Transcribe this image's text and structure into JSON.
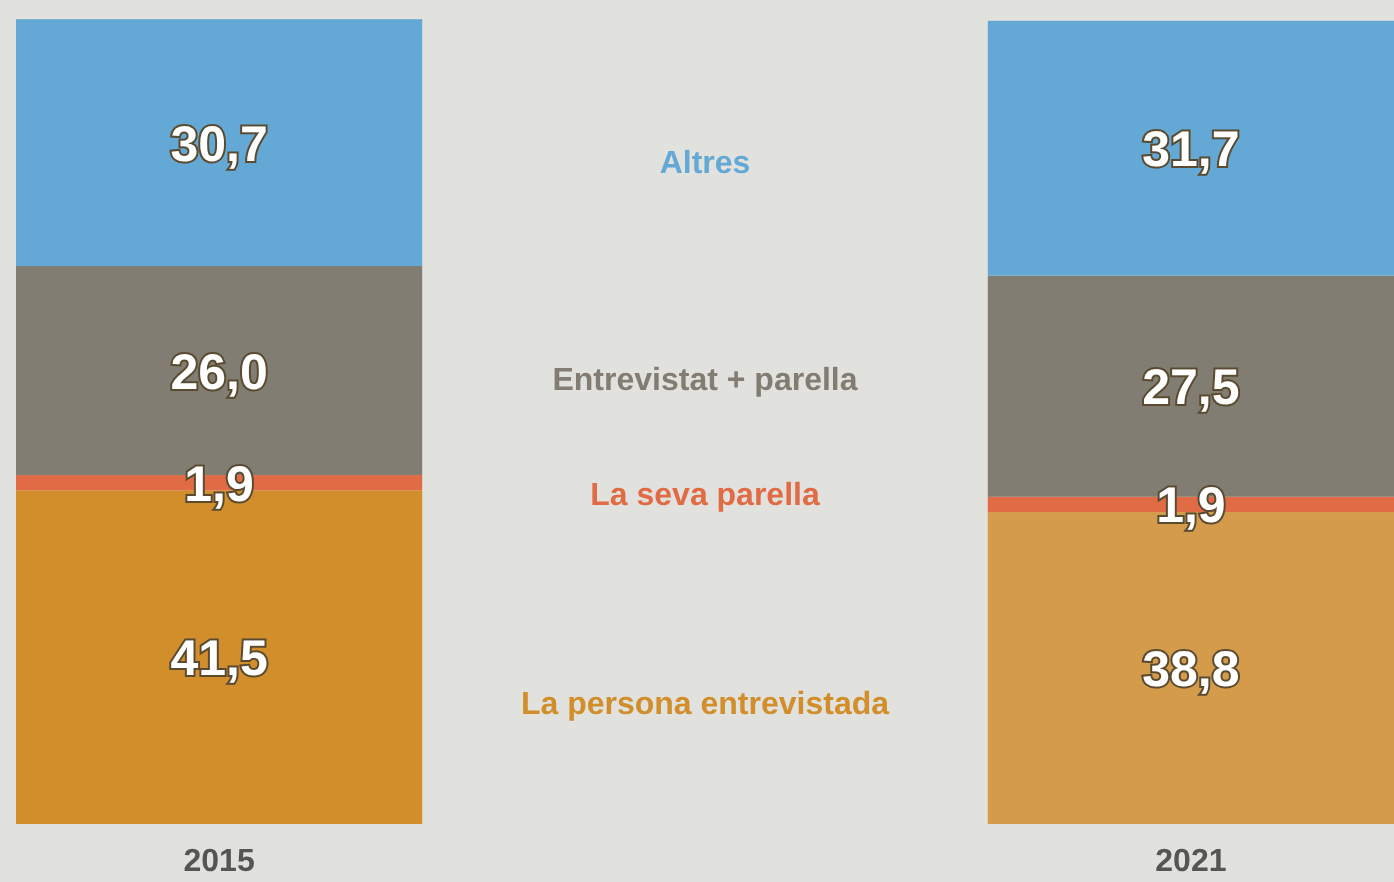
{
  "chart_data": {
    "type": "bar",
    "stacked": true,
    "categories": [
      "2015",
      "2021"
    ],
    "ylim": [
      0,
      100
    ],
    "tick_labels": "x",
    "legend": false,
    "series": [
      {
        "name": "La persona entrevistada",
        "color": "#d18e2b",
        "colors": [
          "#d18e2b",
          "#d49b4b"
        ],
        "values": [
          41.5,
          38.8
        ],
        "value_labels": [
          "41,5",
          "38,8"
        ]
      },
      {
        "name": "La seva parella",
        "color": "#e06b45",
        "values": [
          1.9,
          1.9
        ],
        "value_labels": [
          "1,9",
          "1,9"
        ]
      },
      {
        "name": "Entrevistat + parella",
        "color": "#827d72",
        "values": [
          26.0,
          27.5
        ],
        "value_labels": [
          "26,0",
          "27,5"
        ]
      },
      {
        "name": "Altres",
        "color": "#64a9d5",
        "values": [
          30.7,
          31.7
        ],
        "value_labels": [
          "30,7",
          "31,7"
        ]
      }
    ]
  }
}
